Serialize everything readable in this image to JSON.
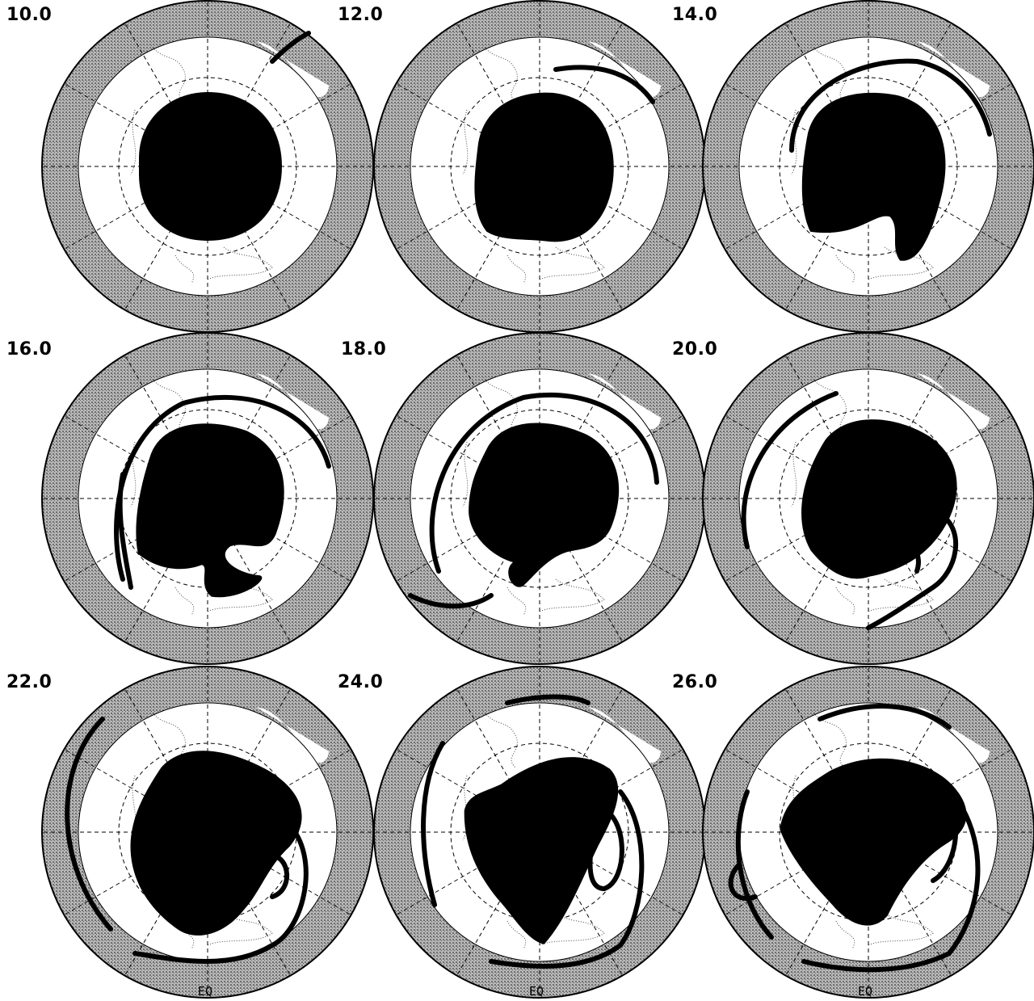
{
  "panels": [
    {
      "label": "10.0",
      "stage": 0
    },
    {
      "label": "12.0",
      "stage": 1
    },
    {
      "label": "14.0",
      "stage": 2
    },
    {
      "label": "16.0",
      "stage": 3
    },
    {
      "label": "18.0",
      "stage": 4
    },
    {
      "label": "20.0",
      "stage": 5
    },
    {
      "label": "22.0",
      "stage": 6
    },
    {
      "label": "24.0",
      "stage": 7
    },
    {
      "label": "26.0",
      "stage": 8
    }
  ],
  "equator_label": "EQ",
  "colors": {
    "background": "#ffffff",
    "ring": "#9b9b9b",
    "vortex": "#000000",
    "grid": "#000000",
    "coast": "#444444"
  }
}
